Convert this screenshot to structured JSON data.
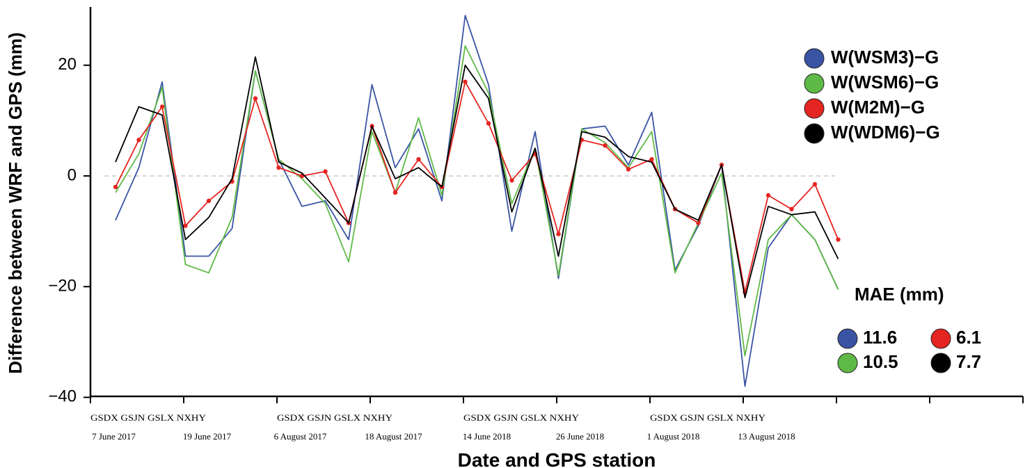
{
  "chart_data": {
    "type": "line",
    "title": "",
    "xlabel": "Date and GPS station",
    "ylabel": "Difference between WRF and GPS (mm)",
    "ylim": [
      -40,
      30
    ],
    "yticks": [
      20,
      0,
      -20,
      -40
    ],
    "ytick_labels": [
      "20",
      "0",
      "−20",
      "−40"
    ],
    "zero_line": true,
    "x_count": 32,
    "station_labels": [
      {
        "text": "GSDX GSJN GSLX NXHY",
        "start": 0
      },
      {
        "text": "GSDX GSJN GSLX NXHY",
        "start": 8
      },
      {
        "text": "GSDX GSJN GSLX NXHY",
        "start": 16
      },
      {
        "text": "GSDX GSJN GSLX NXHY",
        "start": 24
      }
    ],
    "date_labels": [
      {
        "text": "7 June 2017",
        "center": 0.5
      },
      {
        "text": "19 June 2017",
        "center": 4.5
      },
      {
        "text": "6 August 2017",
        "center": 8.5
      },
      {
        "text": "18 August 2017",
        "center": 12.5
      },
      {
        "text": "14 June 2018",
        "center": 16.5
      },
      {
        "text": "26 June 2018",
        "center": 20.5
      },
      {
        "text": "1 August 2018",
        "center": 24.5
      },
      {
        "text": "13 August 2018",
        "center": 28.5
      }
    ],
    "series": [
      {
        "name": "W(WSM3)−G",
        "color": "#3a54a4",
        "markers": false,
        "values": [
          -8,
          1.5,
          17,
          -14.5,
          -14.5,
          -9.5,
          19,
          3,
          -5.5,
          -4.5,
          -11.5,
          16.5,
          1.5,
          8.5,
          -4.5,
          29,
          16.5,
          -10,
          8,
          -18.5,
          8.5,
          9,
          2,
          11.5,
          -17,
          -9,
          2,
          -38,
          -13,
          -7,
          -11.5,
          -20.5
        ]
      },
      {
        "name": "W(WSM6)−G",
        "color": "#5fb946",
        "markers": false,
        "values": [
          -3,
          4,
          16,
          -16,
          -17.5,
          -7.5,
          19,
          3,
          -0.5,
          -5,
          -15.5,
          8,
          -3,
          10.5,
          -3.5,
          23.5,
          15,
          -5,
          5,
          -18,
          8.5,
          6,
          1.5,
          8,
          -17.5,
          -8.5,
          0.5,
          -32.5,
          -11.5,
          -7,
          -11.5,
          -20.5
        ]
      },
      {
        "name": "W(M2M)−G",
        "color": "#e52521",
        "markers": true,
        "values": [
          -2,
          6.5,
          12.5,
          -9,
          -4.5,
          -1,
          14,
          1.5,
          0,
          0.8,
          -8.5,
          9,
          -3,
          3,
          -2,
          17,
          9.5,
          -0.8,
          4,
          -10.5,
          6.5,
          5.5,
          1.2,
          3,
          -6,
          -8.5,
          2,
          -21,
          -3.5,
          -6,
          -1.5,
          -11.5
        ]
      },
      {
        "name": "W(WDM6)−G",
        "color": "#000000",
        "markers": false,
        "values": [
          2.5,
          12.5,
          11,
          -11.5,
          -7.5,
          -0.5,
          21.5,
          2.5,
          0.5,
          -4,
          -8.5,
          9,
          -0.5,
          1.5,
          -2,
          20,
          14,
          -6.5,
          5,
          -14.5,
          8,
          7,
          3.5,
          2.5,
          -6,
          -8,
          2,
          -22,
          -5.5,
          -7,
          -6.5,
          -15
        ]
      }
    ],
    "legend_position": "top-right",
    "mae": {
      "title": "MAE (mm)",
      "values": [
        {
          "series": "W(WSM3)−G",
          "color": "#3a54a4",
          "value": "11.6"
        },
        {
          "series": "W(M2M)−G",
          "color": "#e52521",
          "value": "6.1"
        },
        {
          "series": "W(WSM6)−G",
          "color": "#5fb946",
          "value": "10.5"
        },
        {
          "series": "W(WDM6)−G",
          "color": "#000000",
          "value": "7.7"
        }
      ]
    }
  }
}
